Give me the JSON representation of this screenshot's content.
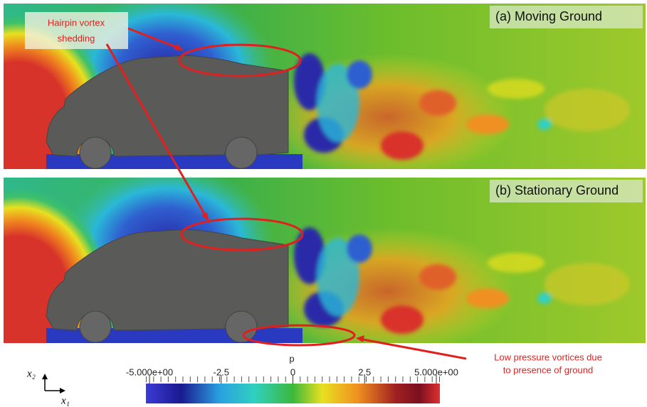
{
  "panels": [
    {
      "label": "(a) Moving Ground"
    },
    {
      "label": "(b) Stationary Ground"
    }
  ],
  "annotations": {
    "hairpin": [
      "Hairpin vortex",
      "shedding"
    ],
    "low_pressure": [
      "Low pressure vortices due",
      "to presence of ground"
    ]
  },
  "axes": {
    "vertical": "x₂",
    "horizontal": "x₁"
  },
  "colorbar": {
    "title": "p",
    "lim": [
      -5,
      5
    ],
    "ticks": [
      {
        "value": -5,
        "label": "-5.000e+00"
      },
      -2.5,
      0,
      2.5,
      {
        "value": 5,
        "label": "5.000e+00"
      }
    ]
  }
}
